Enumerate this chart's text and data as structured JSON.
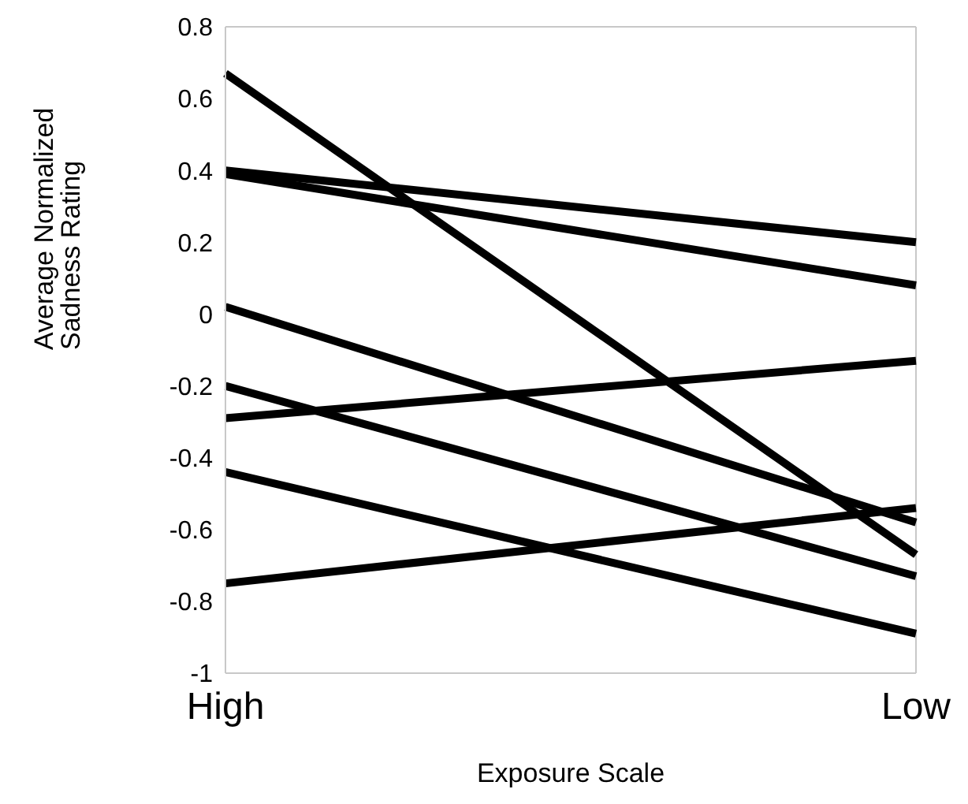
{
  "chart_data": {
    "type": "line",
    "xlabel": "Exposure Scale",
    "ylabel": "Average Normalized Sadness Rating",
    "categories": [
      "High",
      "Low"
    ],
    "series": [
      {
        "color": "#000000",
        "values": [
          0.67,
          -0.67
        ]
      },
      {
        "color": "#000000",
        "values": [
          0.4,
          0.2
        ]
      },
      {
        "color": "#000000",
        "values": [
          0.39,
          0.08
        ]
      },
      {
        "color": "#000000",
        "values": [
          0.02,
          -0.58
        ]
      },
      {
        "color": "#000000",
        "values": [
          -0.2,
          -0.73
        ]
      },
      {
        "color": "#000000",
        "values": [
          -0.29,
          -0.13
        ]
      },
      {
        "color": "#000000",
        "values": [
          -0.44,
          -0.89
        ]
      },
      {
        "color": "#000000",
        "values": [
          -0.75,
          -0.54
        ]
      }
    ],
    "ylim": [
      -1,
      0.8
    ],
    "yticks": [
      -1,
      -0.8,
      -0.6,
      -0.4,
      -0.2,
      0,
      0.2,
      0.4,
      0.6,
      0.8
    ],
    "grid": true,
    "legend": false,
    "marker": "none",
    "line_style": "solid"
  }
}
